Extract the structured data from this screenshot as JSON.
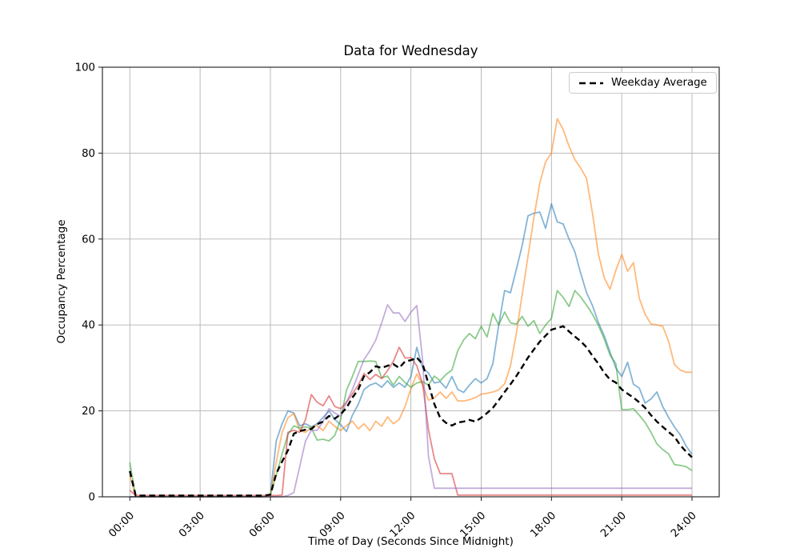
{
  "window": {
    "background": "#ffffff"
  },
  "chart_data": {
    "type": "line",
    "title": "Data for Wednesday",
    "xlabel": "Time of Day (Seconds Since Midnight)",
    "ylabel": "Occupancy Percentage",
    "grid": true,
    "grid_color": "#b3b3b3",
    "legend_position": "upper right",
    "ylim": [
      0,
      100
    ],
    "yticks": [
      0,
      20,
      40,
      60,
      80,
      100
    ],
    "xtick_hours": [
      0,
      3,
      6,
      9,
      12,
      15,
      18,
      21,
      24
    ],
    "xtick_labels": [
      "00:00",
      "03:00",
      "06:00",
      "09:00",
      "12:00",
      "15:00",
      "18:00",
      "21:00",
      "24:00"
    ],
    "x_start_hour": 0,
    "x_step_hours": 0.25,
    "series": [
      {
        "name": "day-line-1",
        "color": "#1f77b4",
        "opacity": 0.55,
        "width": 1.8,
        "dash": "",
        "in_legend": false,
        "values": [
          0,
          0,
          0,
          0,
          0,
          0,
          0,
          0,
          0,
          0,
          0,
          0,
          0,
          0,
          0,
          0,
          0,
          0,
          0,
          0,
          0,
          0,
          0,
          0,
          0.5,
          13,
          17,
          20,
          19.5,
          16.5,
          17,
          16.3,
          17,
          18.5,
          20,
          18,
          16.8,
          15.2,
          19,
          21.5,
          25,
          26,
          26.5,
          25.5,
          27,
          25.5,
          26.5,
          25.5,
          28,
          34.8,
          30,
          28.8,
          26.5,
          26.8,
          25.3,
          28,
          25,
          24.3,
          26,
          27.5,
          26.5,
          27.5,
          31,
          40,
          48,
          47.5,
          52.9,
          58.5,
          65.4,
          66,
          66.3,
          62.5,
          68.2,
          64,
          63.5,
          60,
          57,
          52,
          47.5,
          44.5,
          40.6,
          37.5,
          33.7,
          30,
          28,
          31.3,
          26.2,
          25.3,
          21.8,
          22.8,
          24.4,
          21,
          18.5,
          16.3,
          14.4,
          11.8,
          9.9
        ]
      },
      {
        "name": "day-line-2",
        "color": "#ff7f0e",
        "opacity": 0.55,
        "width": 1.8,
        "dash": "",
        "in_legend": false,
        "values": [
          5,
          0,
          0,
          0,
          0,
          0,
          0,
          0,
          0,
          0,
          0,
          0,
          0,
          0,
          0,
          0,
          0,
          0,
          0,
          0,
          0,
          0,
          0,
          0,
          0.5,
          8,
          15,
          18.4,
          19.4,
          15.4,
          15,
          16.2,
          16.6,
          15.4,
          17.6,
          16.4,
          15.4,
          16.6,
          17.6,
          15.8,
          17,
          15.4,
          17.6,
          16.4,
          18.6,
          17,
          18,
          21,
          25.2,
          28.6,
          26,
          22.5,
          23,
          24.4,
          22.9,
          24.4,
          22.3,
          22.3,
          22.6,
          23.1,
          23.9,
          24.1,
          24.4,
          24.9,
          26.3,
          30.5,
          38,
          47,
          56,
          65,
          73,
          78,
          80,
          88,
          85.5,
          81.6,
          78.5,
          76.5,
          74.1,
          66,
          56.6,
          51,
          48.3,
          52.7,
          56.4,
          52.5,
          54.5,
          46.2,
          42.5,
          40.2,
          40,
          39.7,
          36.2,
          30.8,
          29.5,
          29,
          29
        ]
      },
      {
        "name": "day-line-3",
        "color": "#2ca02c",
        "opacity": 0.55,
        "width": 1.8,
        "dash": "",
        "in_legend": false,
        "values": [
          8,
          0,
          0,
          0,
          0,
          0,
          0,
          0,
          0,
          0,
          0,
          0,
          0,
          0,
          0,
          0,
          0,
          0,
          0,
          0,
          0,
          0,
          0,
          0,
          0.5,
          5,
          10,
          14.5,
          16.5,
          16,
          16.3,
          16,
          13.2,
          13.4,
          13,
          14.3,
          18,
          24.8,
          28,
          31.5,
          31.5,
          31.6,
          31.5,
          27.7,
          28.1,
          26,
          28,
          26.6,
          25.5,
          26.5,
          26.8,
          26,
          28.1,
          27,
          28.5,
          29.5,
          34,
          36.5,
          38,
          36.8,
          39.7,
          37.2,
          42.7,
          40,
          43,
          40.5,
          40.2,
          42,
          39.7,
          41,
          38,
          40,
          41.5,
          48,
          46.4,
          44.3,
          48,
          46.5,
          44.6,
          42.5,
          39.9,
          36.8,
          33,
          31,
          20.3,
          20.3,
          20.5,
          19,
          17.3,
          15,
          12.3,
          11,
          10,
          7.5,
          7.3,
          7,
          6.1
        ]
      },
      {
        "name": "day-line-4",
        "color": "#d62728",
        "opacity": 0.55,
        "width": 1.8,
        "dash": "",
        "in_legend": false,
        "values": [
          1.5,
          0.3,
          0.3,
          0.3,
          0.3,
          0.3,
          0.3,
          0.3,
          0.3,
          0.3,
          0.3,
          0.3,
          0.3,
          0.3,
          0.3,
          0.3,
          0.3,
          0.3,
          0.3,
          0.3,
          0.3,
          0.3,
          0.3,
          0.3,
          0.3,
          0.3,
          0.4,
          15,
          15.5,
          15,
          18,
          23.8,
          22,
          21.2,
          23.5,
          21,
          20.5,
          22,
          24,
          26,
          28.7,
          27.3,
          28.5,
          27.5,
          29.4,
          31.5,
          34.8,
          32.3,
          32.4,
          30.5,
          26.3,
          15.6,
          8.9,
          5.4,
          5.4,
          5.4,
          0.4,
          0.4,
          0.4,
          0.4,
          0.4,
          0.4,
          0.4,
          0.4,
          0.4,
          0.4,
          0.4,
          0.4,
          0.4,
          0.4,
          0.4,
          0.4,
          0.4,
          0.4,
          0.4,
          0.4,
          0.4,
          0.4,
          0.4,
          0.4,
          0.4,
          0.4,
          0.4,
          0.4,
          0.4,
          0.4,
          0.4,
          0.4,
          0.4,
          0.4,
          0.4,
          0.4,
          0.4,
          0.4,
          0.4,
          0.4,
          0.4
        ]
      },
      {
        "name": "day-line-5",
        "color": "#9467bd",
        "opacity": 0.55,
        "width": 1.8,
        "dash": "",
        "in_legend": false,
        "values": [
          0,
          0,
          0,
          0,
          0,
          0,
          0,
          0,
          0,
          0,
          0,
          0,
          0,
          0,
          0,
          0,
          0,
          0,
          0,
          0,
          0,
          0,
          0,
          0,
          0,
          0,
          0,
          0.3,
          1,
          7,
          13,
          15.5,
          15.5,
          17.5,
          20.5,
          19.5,
          18.8,
          22,
          25,
          28.5,
          32,
          34,
          36.5,
          40.5,
          44.7,
          42.8,
          42.8,
          40.8,
          43,
          44.5,
          31.8,
          9.5,
          2,
          2,
          2,
          2,
          2,
          2,
          2,
          2,
          2,
          2,
          2,
          2,
          2,
          2,
          2,
          2,
          2,
          2,
          2,
          2,
          2,
          2,
          2,
          2,
          2,
          2,
          2,
          2,
          2,
          2,
          2,
          2,
          2,
          2,
          2,
          2,
          2,
          2,
          2,
          2,
          2,
          2,
          2,
          2,
          2
        ]
      },
      {
        "name": "Weekday Average",
        "color": "#000000",
        "opacity": 1,
        "width": 2.4,
        "dash": "7.5 4.6",
        "in_legend": true,
        "values": [
          6,
          0.3,
          0.3,
          0.3,
          0.3,
          0.3,
          0.3,
          0.3,
          0.3,
          0.3,
          0.3,
          0.3,
          0.3,
          0.3,
          0.3,
          0.3,
          0.3,
          0.3,
          0.3,
          0.3,
          0.3,
          0.3,
          0.3,
          0.3,
          0.5,
          5.4,
          8.2,
          10.8,
          14.7,
          15.3,
          15.6,
          15.8,
          16.9,
          17.5,
          18.8,
          18.2,
          19.2,
          20.7,
          23.1,
          25,
          28.1,
          29,
          30.4,
          30,
          30.5,
          30.9,
          30,
          31.5,
          31.8,
          32.4,
          30.9,
          26.3,
          21.6,
          18.4,
          17.2,
          16.6,
          17.3,
          17.5,
          17.9,
          17.5,
          18.4,
          19.5,
          20.7,
          22.5,
          24.4,
          26.2,
          28.1,
          30.2,
          32.4,
          34.3,
          36.1,
          37.5,
          38.9,
          39.3,
          39.7,
          38.5,
          37.3,
          36.2,
          34.8,
          32.8,
          31,
          28.9,
          27.3,
          26.6,
          25,
          24,
          23.1,
          22,
          20.7,
          19,
          17.5,
          16.3,
          15.1,
          14,
          12,
          10.5,
          9.2
        ]
      }
    ]
  }
}
